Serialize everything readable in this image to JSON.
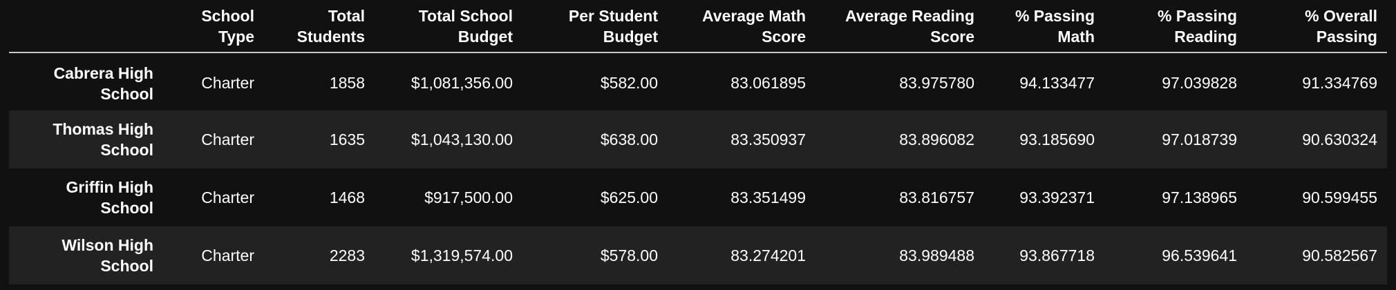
{
  "table": {
    "index_header": "",
    "columns": [
      "School Type",
      "Total Students",
      "Total School Budget",
      "Per Student Budget",
      "Average Math Score",
      "Average Reading Score",
      "% Passing Math",
      "% Passing Reading",
      "% Overall Passing"
    ],
    "rows": [
      {
        "name": "Cabrera High School",
        "cells": [
          "Charter",
          "1858",
          "$1,081,356.00",
          "$582.00",
          "83.061895",
          "83.975780",
          "94.133477",
          "97.039828",
          "91.334769"
        ]
      },
      {
        "name": "Thomas High School",
        "cells": [
          "Charter",
          "1635",
          "$1,043,130.00",
          "$638.00",
          "83.350937",
          "83.896082",
          "93.185690",
          "97.018739",
          "90.630324"
        ]
      },
      {
        "name": "Griffin High School",
        "cells": [
          "Charter",
          "1468",
          "$917,500.00",
          "$625.00",
          "83.351499",
          "83.816757",
          "93.392371",
          "97.138965",
          "90.599455"
        ]
      },
      {
        "name": "Wilson High School",
        "cells": [
          "Charter",
          "2283",
          "$1,319,574.00",
          "$578.00",
          "83.274201",
          "83.989488",
          "93.867718",
          "96.539641",
          "90.582567"
        ]
      }
    ]
  }
}
